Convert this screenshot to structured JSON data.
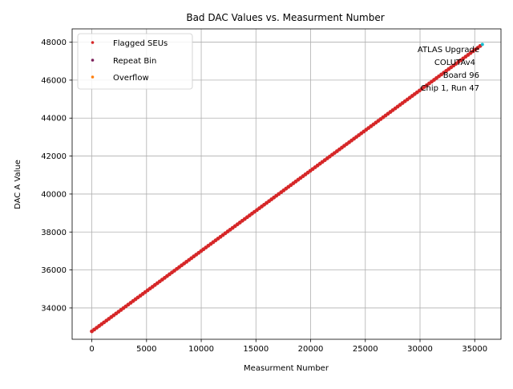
{
  "chart_data": {
    "type": "scatter",
    "title": "Bad DAC Values vs. Measurment Number",
    "xlabel": "Measurment Number",
    "ylabel": "DAC A Value",
    "xlim": [
      -1800,
      37400
    ],
    "ylim": [
      32350,
      48700
    ],
    "xticks": [
      0,
      5000,
      10000,
      15000,
      20000,
      25000,
      30000,
      35000
    ],
    "yticks": [
      34000,
      36000,
      38000,
      40000,
      42000,
      44000,
      46000,
      48000
    ],
    "grid": true,
    "legend_position": "top-left",
    "series": [
      {
        "name": "Flagged SEUs",
        "color": "#d62728",
        "x": [
          0,
          35500
        ],
        "y": [
          32768,
          47800
        ]
      },
      {
        "name": "Repeat Bin",
        "color": "#7b1f5a",
        "x": [],
        "y": []
      },
      {
        "name": "Overflow",
        "color": "#ff7f0e",
        "x": [],
        "y": []
      }
    ],
    "extra_points": [
      {
        "color": "#17becf",
        "x": 35700,
        "y": 47880
      }
    ],
    "annotation_lines": [
      "ATLAS Upgrade",
      "COLUTAv4",
      "Board 96",
      "Chip 1, Run 47"
    ]
  }
}
